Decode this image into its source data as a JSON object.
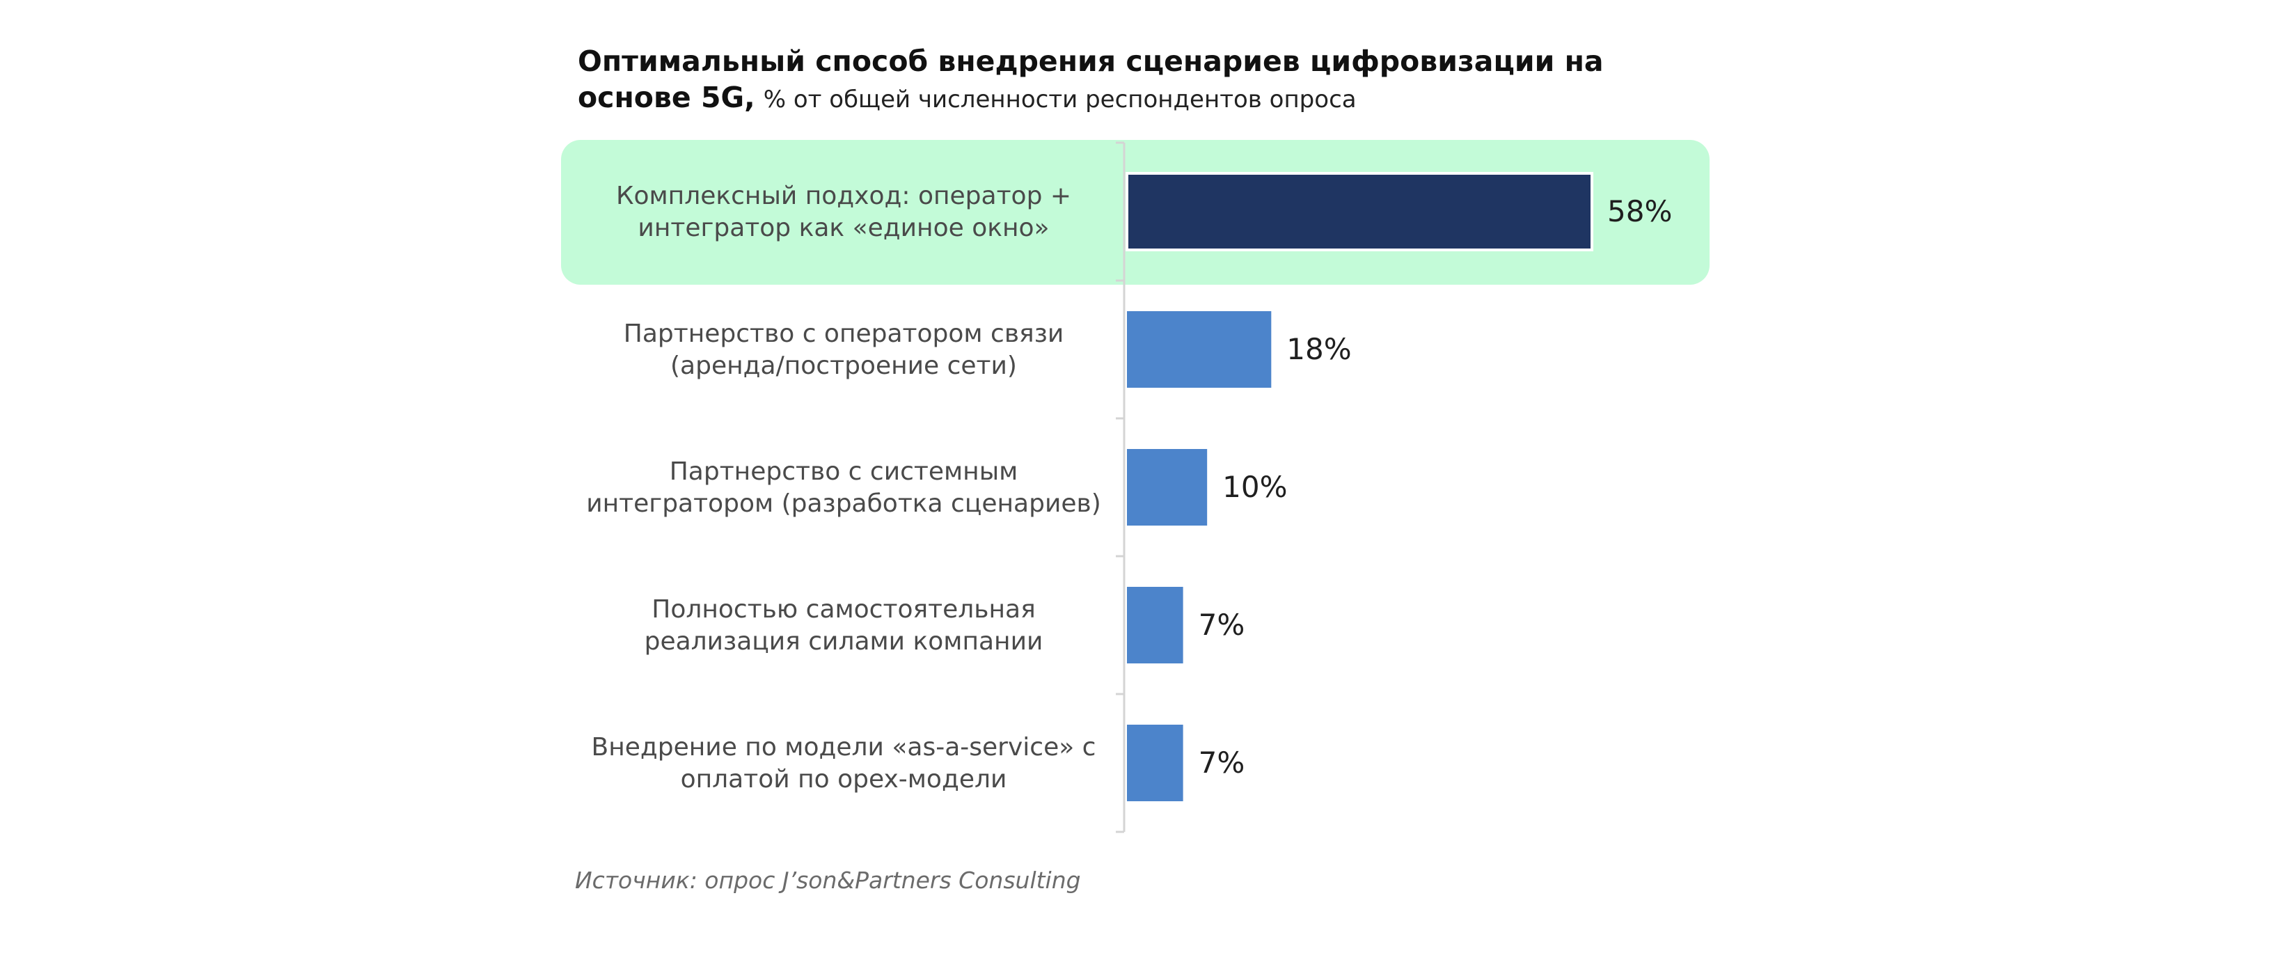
{
  "title": {
    "line1": "Оптимальный способ внедрения сценариев цифровизации на",
    "line2": "основе 5G,",
    "subtitle": "% от общей численности респондентов опроса"
  },
  "source": "Источник: опрос J’son&Partners Consulting",
  "colors": {
    "highlight_bg": "#c3fbd8",
    "bar_highlight": "#1f3562",
    "bar": "#4c84cb",
    "axis": "#d4d4d4"
  },
  "chart_data": {
    "type": "bar",
    "orientation": "horizontal",
    "categories": [
      [
        "Комплексный подход: оператор +",
        "интегратор как «единое окно»"
      ],
      [
        "Партнерство с оператором связи",
        "(аренда/построение сети)"
      ],
      [
        "Партнерство с системным",
        "интегратором (разработка сценариев)"
      ],
      [
        "Полностью самостоятельная",
        "реализация силами компании"
      ],
      [
        "Внедрение по модели «as-a-service» с",
        "оплатой по opex-модели"
      ]
    ],
    "values": [
      58,
      18,
      10,
      7,
      7
    ],
    "value_labels": [
      "58%",
      "18%",
      "10%",
      "7%",
      "7%"
    ],
    "highlighted_index": 0,
    "unit": "%",
    "xlim": [
      0,
      58
    ]
  }
}
